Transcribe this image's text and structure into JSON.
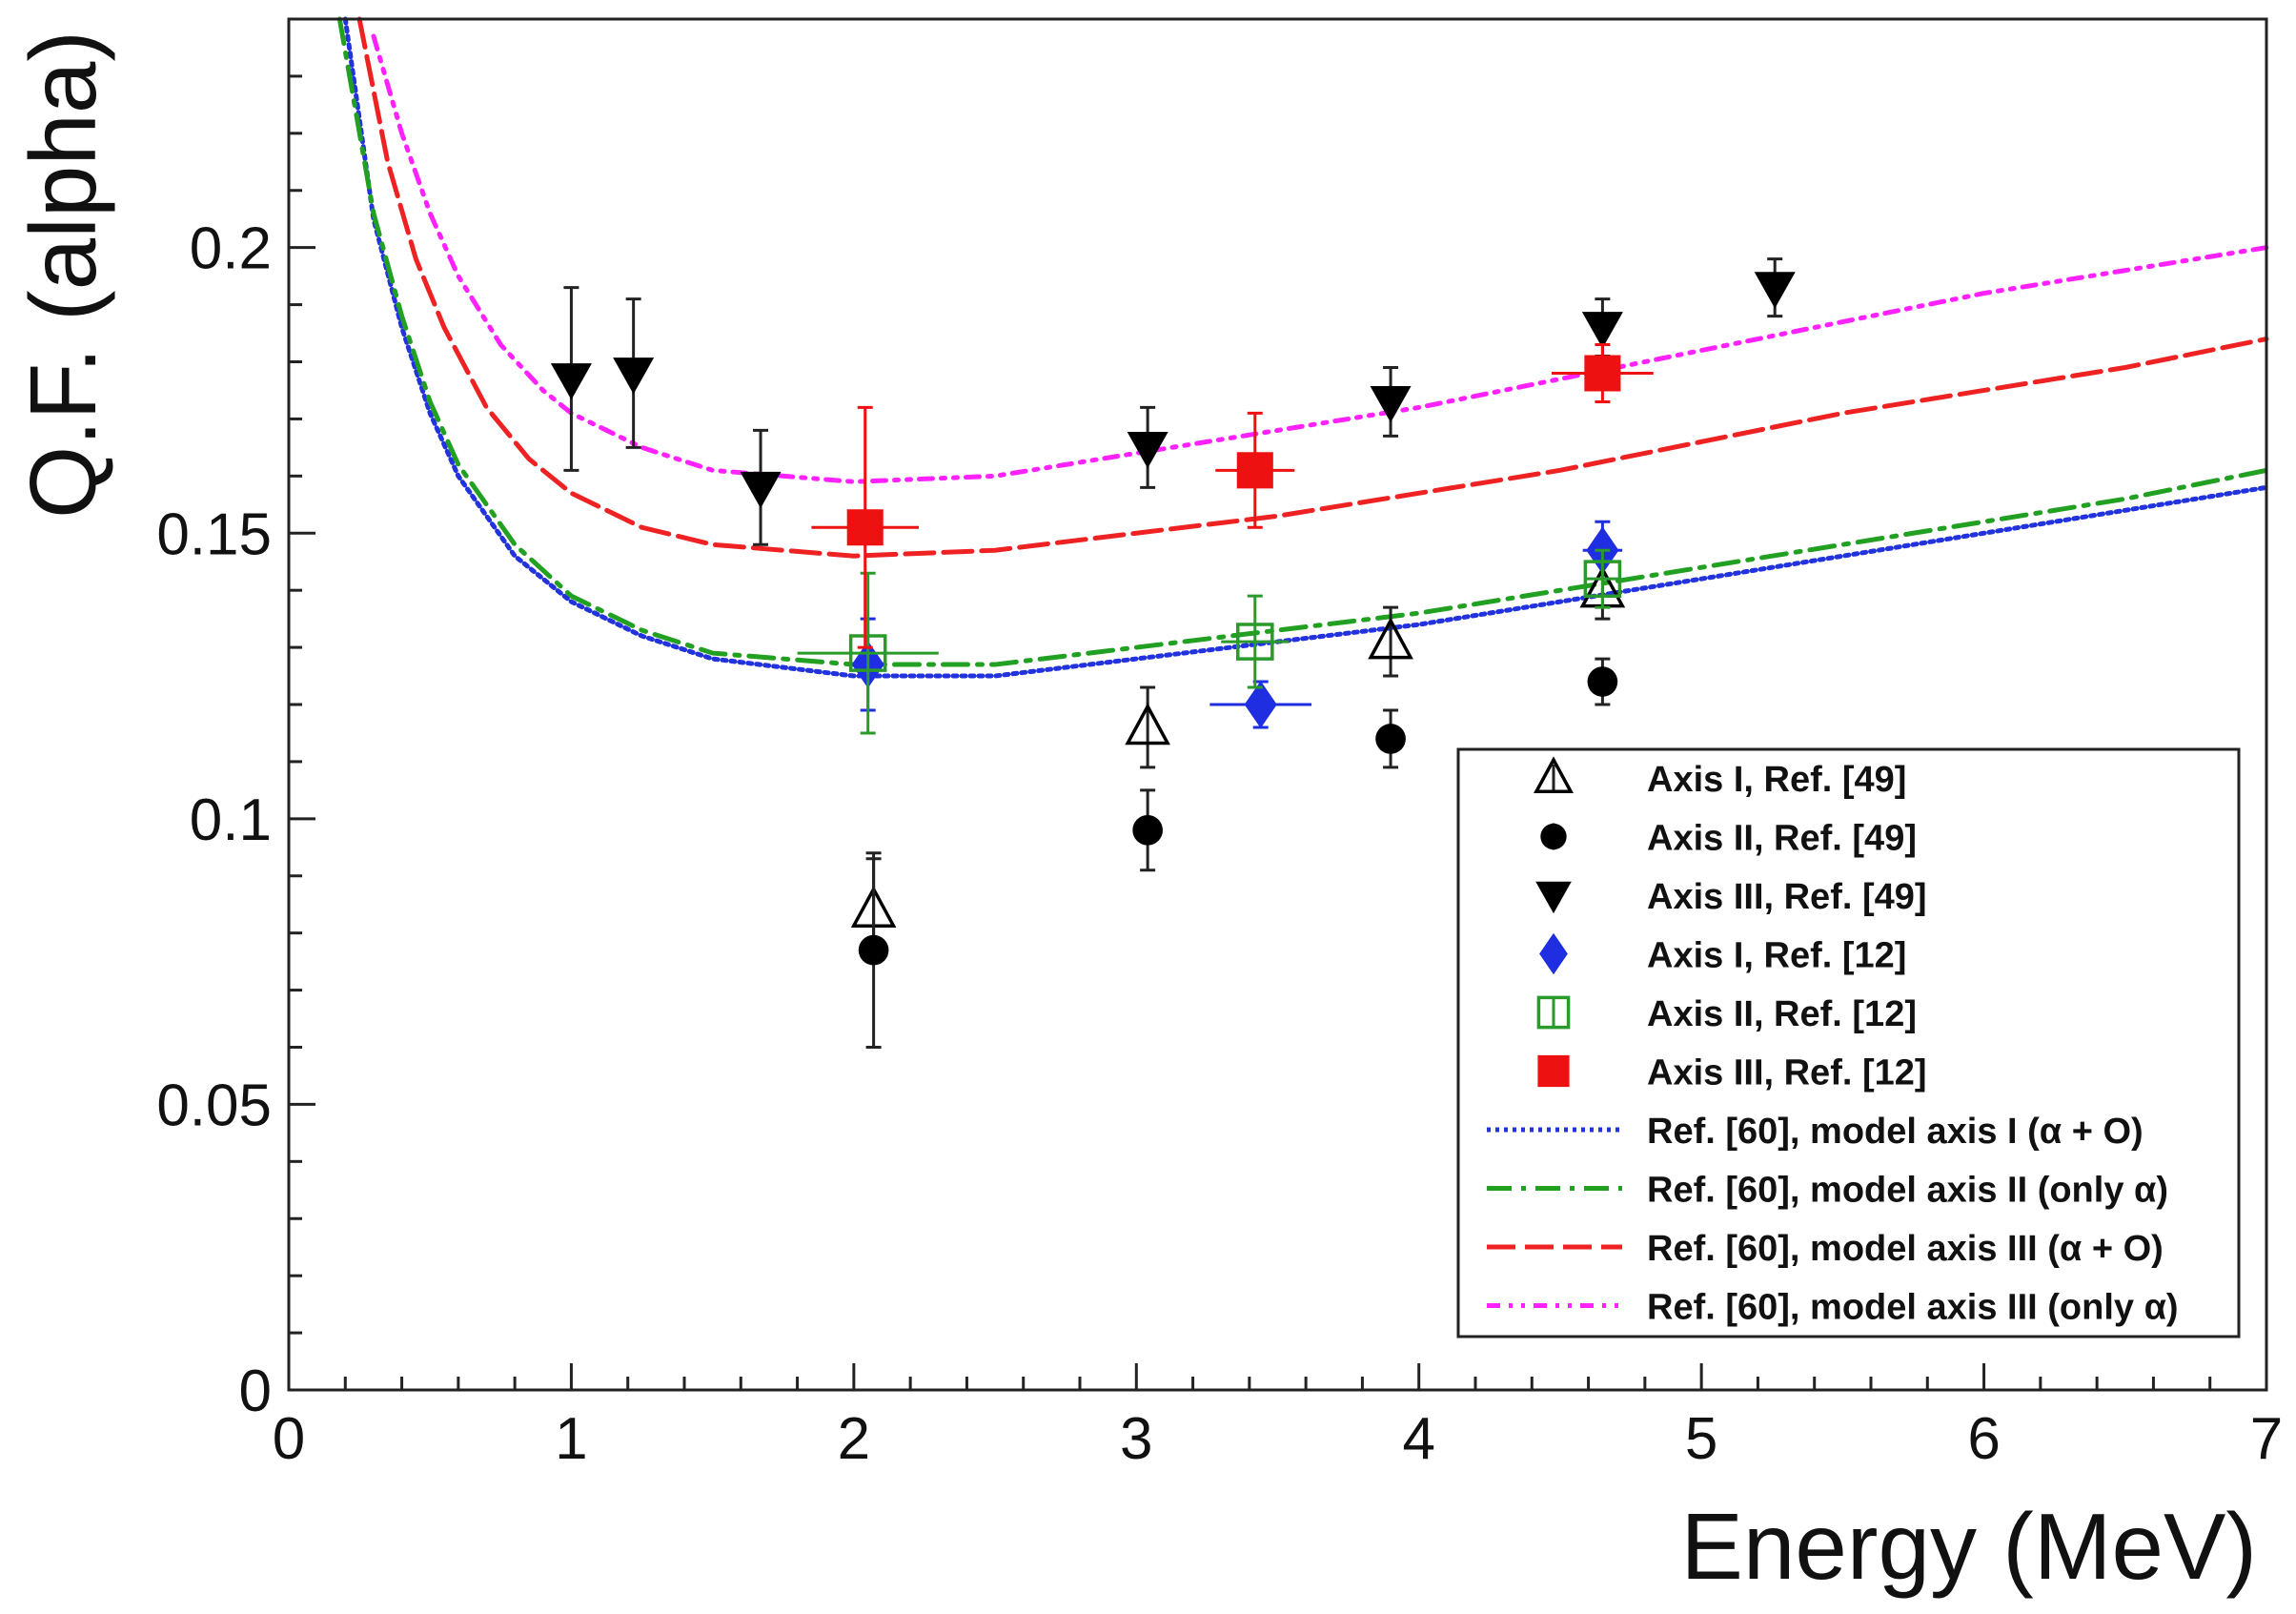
{
  "chart_data": {
    "type": "scatter",
    "xlabel": "Energy (MeV)",
    "ylabel": "Q.F. (alpha)",
    "xlim": [
      0,
      7
    ],
    "ylim": [
      0,
      0.24
    ],
    "x_ticks": [
      "0",
      "1",
      "2",
      "3",
      "4",
      "5",
      "6",
      "7"
    ],
    "y_ticks": [
      "0",
      "0.05",
      "0.1",
      "0.15",
      "0.2"
    ],
    "grid": false,
    "legend_position": "bottom-right",
    "series": [
      {
        "name": "Axis I, Ref. [49]",
        "kind": "points",
        "marker": "triangle-up-open",
        "color": "#000000",
        "points": [
          {
            "x": 2.07,
            "y": 0.084,
            "yerr": 0.009
          },
          {
            "x": 3.04,
            "y": 0.116,
            "yerr": 0.007
          },
          {
            "x": 3.9,
            "y": 0.131,
            "yerr": 0.006
          },
          {
            "x": 4.65,
            "y": 0.14,
            "yerr": 0.005
          }
        ]
      },
      {
        "name": "Axis II, Ref. [49]",
        "kind": "points",
        "marker": "circle",
        "color": "#000000",
        "points": [
          {
            "x": 2.07,
            "y": 0.077,
            "yerr": 0.017
          },
          {
            "x": 3.04,
            "y": 0.098,
            "yerr": 0.007
          },
          {
            "x": 3.9,
            "y": 0.114,
            "yerr": 0.005
          },
          {
            "x": 4.65,
            "y": 0.124,
            "yerr": 0.004
          }
        ]
      },
      {
        "name": "Axis III, Ref. [49]",
        "kind": "points",
        "marker": "triangle-down",
        "color": "#000000",
        "points": [
          {
            "x": 1.0,
            "y": 0.177,
            "yerr": 0.016
          },
          {
            "x": 1.22,
            "y": 0.178,
            "yerr": 0.013
          },
          {
            "x": 1.67,
            "y": 0.158,
            "yerr": 0.01
          },
          {
            "x": 3.04,
            "y": 0.165,
            "yerr": 0.007
          },
          {
            "x": 3.9,
            "y": 0.173,
            "yerr": 0.006
          },
          {
            "x": 4.65,
            "y": 0.186,
            "yerr": 0.005
          },
          {
            "x": 5.26,
            "y": 0.193,
            "yerr": 0.005
          }
        ]
      },
      {
        "name": "Axis I, Ref. [12]",
        "kind": "points",
        "marker": "diamond",
        "color": "#1f2ee0",
        "points": [
          {
            "x": 2.05,
            "y": 0.127,
            "yerr": 0.008,
            "xerr": 0
          },
          {
            "x": 3.44,
            "y": 0.12,
            "yerr": 0.004,
            "xerr": 0.18
          },
          {
            "x": 4.65,
            "y": 0.147,
            "yerr": 0.005,
            "xerr": 0.07
          }
        ]
      },
      {
        "name": "Axis II, Ref. [12]",
        "kind": "points",
        "marker": "square-open",
        "color": "#2a9a2a",
        "points": [
          {
            "x": 2.05,
            "y": 0.129,
            "yerr": 0.014,
            "xerr": 0.25
          },
          {
            "x": 3.42,
            "y": 0.131,
            "yerr": 0.008,
            "xerr": 0.12
          },
          {
            "x": 4.65,
            "y": 0.142,
            "yerr": 0.005,
            "xerr": 0.06
          }
        ]
      },
      {
        "name": "Axis III, Ref. [12]",
        "kind": "points",
        "marker": "square",
        "color": "#ee1111",
        "points": [
          {
            "x": 2.04,
            "y": 0.151,
            "yerr": 0.021,
            "xerr": 0.19
          },
          {
            "x": 3.42,
            "y": 0.161,
            "yerr": 0.01,
            "xerr": 0.14
          },
          {
            "x": 4.65,
            "y": 0.178,
            "yerr": 0.005,
            "xerr": 0.18
          }
        ]
      },
      {
        "name": "Ref. [60], model axis I (α + O)",
        "kind": "line",
        "dash": "dotted",
        "color": "#2233dd",
        "x": [
          0.2,
          0.3,
          0.4,
          0.5,
          0.6,
          0.8,
          1.0,
          1.25,
          1.5,
          2.0,
          2.5,
          3.0,
          3.5,
          4.0,
          4.5,
          5.0,
          5.5,
          6.0,
          6.5,
          7.0
        ],
        "y": [
          0.24,
          0.205,
          0.186,
          0.171,
          0.16,
          0.146,
          0.138,
          0.132,
          0.128,
          0.125,
          0.125,
          0.128,
          0.131,
          0.134,
          0.138,
          0.142,
          0.146,
          0.15,
          0.154,
          0.158
        ]
      },
      {
        "name": "Ref. [60], model axis II (only α)",
        "kind": "line",
        "dash": "dashdot",
        "color": "#22a022",
        "x": [
          0.18,
          0.3,
          0.4,
          0.5,
          0.6,
          0.8,
          1.0,
          1.25,
          1.5,
          2.0,
          2.5,
          3.0,
          3.5,
          4.0,
          4.5,
          5.0,
          5.5,
          6.0,
          6.5,
          7.0
        ],
        "y": [
          0.24,
          0.206,
          0.188,
          0.173,
          0.162,
          0.148,
          0.139,
          0.133,
          0.129,
          0.127,
          0.127,
          0.13,
          0.133,
          0.136,
          0.14,
          0.144,
          0.148,
          0.152,
          0.156,
          0.161
        ]
      },
      {
        "name": "Ref. [60], model axis III (α + O)",
        "kind": "line",
        "dash": "dashed",
        "color": "#ee2222",
        "x": [
          0.25,
          0.35,
          0.45,
          0.55,
          0.7,
          0.85,
          1.0,
          1.25,
          1.5,
          2.0,
          2.5,
          3.0,
          3.5,
          4.0,
          4.5,
          5.0,
          5.5,
          6.0,
          6.5,
          7.0
        ],
        "y": [
          0.24,
          0.215,
          0.198,
          0.186,
          0.172,
          0.163,
          0.157,
          0.151,
          0.148,
          0.146,
          0.147,
          0.15,
          0.153,
          0.157,
          0.161,
          0.166,
          0.171,
          0.175,
          0.179,
          0.184
        ]
      },
      {
        "name": "Ref. [60], model axis III (only α)",
        "kind": "line",
        "dash": "dashdotdot",
        "color": "#ff22ff",
        "x": [
          0.3,
          0.4,
          0.5,
          0.6,
          0.75,
          0.9,
          1.0,
          1.25,
          1.5,
          2.0,
          2.5,
          3.0,
          3.5,
          4.0,
          4.5,
          5.0,
          5.5,
          6.0,
          6.5,
          7.0
        ],
        "y": [
          0.237,
          0.22,
          0.206,
          0.195,
          0.183,
          0.175,
          0.171,
          0.165,
          0.161,
          0.159,
          0.16,
          0.164,
          0.168,
          0.172,
          0.177,
          0.182,
          0.187,
          0.192,
          0.196,
          0.2
        ]
      }
    ]
  }
}
